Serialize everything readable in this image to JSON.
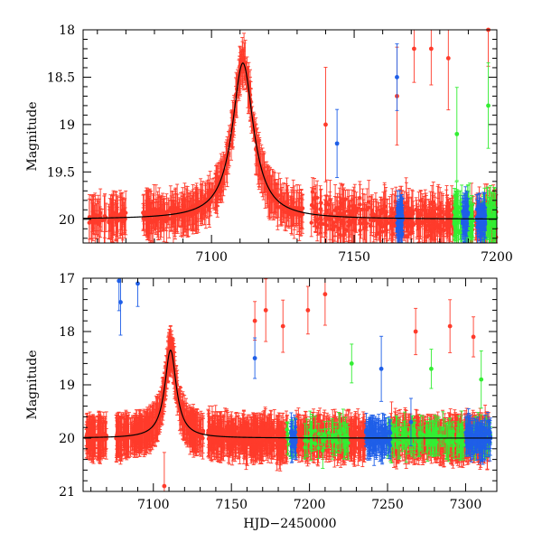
{
  "chart_data": [
    {
      "type": "scatter",
      "title": "",
      "xlabel": "",
      "ylabel": "Magnitude",
      "xlim": [
        7055,
        7200
      ],
      "ylim": [
        20.25,
        18.0
      ],
      "y_inverted": true,
      "xticks": [
        7100,
        7150,
        7200
      ],
      "yticks": [
        18,
        18.5,
        19,
        19.5,
        20
      ],
      "xtick_labels": [
        "7100",
        "7150",
        "7200"
      ],
      "ytick_labels": [
        "18",
        "18.5",
        "19",
        "19.5",
        "20"
      ],
      "grid": false,
      "model_curve": {
        "color": "#000000",
        "t0": 7111,
        "peak_mag": 18.35,
        "baseline_mag": 20.0,
        "rise_width": 4.5,
        "decay_width": 4.5
      },
      "series": [
        {
          "name": "red",
          "color": "#ff3b2b",
          "x_range": [
            7057,
            7200
          ],
          "typical_error": 0.18,
          "segments": [
            [
              7057,
              7063
            ],
            [
              7064,
              7070
            ],
            [
              7076,
              7132
            ],
            [
              7135,
              7186
            ],
            [
              7191,
              7200
            ]
          ],
          "outliers": [
            [
              7165,
              18.7
            ],
            [
              7171,
              18.2
            ],
            [
              7177,
              18.2
            ],
            [
              7183,
              18.3
            ],
            [
              7197,
              18.0
            ],
            [
              7140,
              19.0
            ]
          ]
        },
        {
          "name": "green",
          "color": "#33ee33",
          "x_range": [
            7185,
            7200
          ],
          "typical_error": 0.2,
          "segments": [
            [
              7185,
              7192
            ],
            [
              7195,
              7200
            ]
          ],
          "outliers": [
            [
              7186,
              19.1
            ],
            [
              7197,
              18.8
            ]
          ]
        },
        {
          "name": "blue",
          "color": "#1f5fe8",
          "x_range": [
            7144,
            7200
          ],
          "typical_error": 0.15,
          "segments": [
            [
              7165,
              7167
            ],
            [
              7188,
              7190
            ],
            [
              7193,
              7196
            ]
          ],
          "outliers": [
            [
              7165,
              18.5
            ],
            [
              7144,
              19.2
            ]
          ]
        }
      ]
    },
    {
      "type": "scatter",
      "title": "",
      "xlabel": "HJD−2450000",
      "ylabel": "Magnitude",
      "xlim": [
        7055,
        7320
      ],
      "ylim": [
        21.0,
        17.0
      ],
      "y_inverted": true,
      "xticks": [
        7100,
        7150,
        7200,
        7250,
        7300
      ],
      "yticks": [
        17,
        18,
        19,
        20,
        21
      ],
      "xtick_labels": [
        "7100",
        "7150",
        "7200",
        "7250",
        "7300"
      ],
      "ytick_labels": [
        "17",
        "18",
        "19",
        "20",
        "21"
      ],
      "grid": false,
      "model_curve": {
        "color": "#000000",
        "t0": 7111,
        "peak_mag": 18.35,
        "baseline_mag": 20.0,
        "rise_width": 4.5,
        "decay_width": 4.5
      },
      "series": [
        {
          "name": "red",
          "color": "#ff3b2b",
          "x_range": [
            7057,
            7315
          ],
          "typical_error": 0.3,
          "segments": [
            [
              7057,
              7063
            ],
            [
              7064,
              7070
            ],
            [
              7076,
              7132
            ],
            [
              7135,
              7186
            ],
            [
              7191,
              7236
            ],
            [
              7252,
              7315
            ]
          ],
          "outliers": [
            [
              7165,
              17.8
            ],
            [
              7172,
              17.6
            ],
            [
              7183,
              17.9
            ],
            [
              7199,
              17.6
            ],
            [
              7210,
              17.3
            ],
            [
              7268,
              18.0
            ],
            [
              7290,
              17.9
            ],
            [
              7305,
              18.1
            ],
            [
              7107,
              20.9
            ]
          ]
        },
        {
          "name": "green",
          "color": "#33ee33",
          "x_range": [
            7185,
            7316
          ],
          "typical_error": 0.25,
          "segments": [
            [
              7185,
              7192
            ],
            [
              7197,
              7225
            ],
            [
              7250,
              7316
            ]
          ],
          "outliers": [
            [
              7227,
              18.6
            ],
            [
              7278,
              18.7
            ],
            [
              7310,
              18.9
            ]
          ]
        },
        {
          "name": "blue",
          "color": "#1f5fe8",
          "x_range": [
            7078,
            7316
          ],
          "typical_error": 0.25,
          "segments": [
            [
              7188,
              7192
            ],
            [
              7236,
              7252
            ],
            [
              7300,
              7316
            ]
          ],
          "outliers": [
            [
              7078,
              17.05
            ],
            [
              7079,
              17.45
            ],
            [
              7090,
              17.1
            ],
            [
              7165,
              18.5
            ],
            [
              7246,
              18.7
            ],
            [
              7265,
              19.7
            ]
          ]
        }
      ]
    }
  ]
}
